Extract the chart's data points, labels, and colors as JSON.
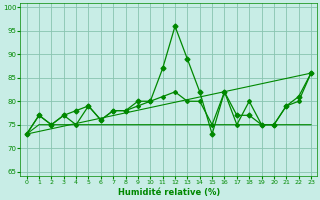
{
  "xlabel": "Humidité relative (%)",
  "xlim": [
    -0.5,
    23.5
  ],
  "ylim": [
    64,
    101
  ],
  "yticks": [
    65,
    70,
    75,
    80,
    85,
    90,
    95,
    100
  ],
  "xticks": [
    0,
    1,
    2,
    3,
    4,
    5,
    6,
    7,
    8,
    9,
    10,
    11,
    12,
    13,
    14,
    15,
    16,
    17,
    18,
    19,
    20,
    21,
    22,
    23
  ],
  "background_color": "#c8ede6",
  "grid_color": "#88c4b0",
  "line_color": "#008800",
  "series1": [
    73,
    77,
    75,
    77,
    78,
    79,
    76,
    78,
    78,
    80,
    80,
    87,
    96,
    89,
    82,
    73,
    82,
    77,
    77,
    75,
    75,
    79,
    81,
    86
  ],
  "series2": [
    73,
    77,
    75,
    77,
    75,
    79,
    76,
    78,
    78,
    79,
    80,
    81,
    82,
    80,
    80,
    75,
    82,
    75,
    80,
    75,
    75,
    79,
    80,
    86
  ],
  "series3": [
    73,
    75,
    75,
    75,
    75,
    75,
    75,
    75,
    75,
    75,
    75,
    75,
    75,
    75,
    75,
    75,
    75,
    75,
    75,
    75,
    75,
    75,
    75,
    75
  ],
  "series4_x": [
    0,
    23
  ],
  "series4_y": [
    73,
    86
  ]
}
